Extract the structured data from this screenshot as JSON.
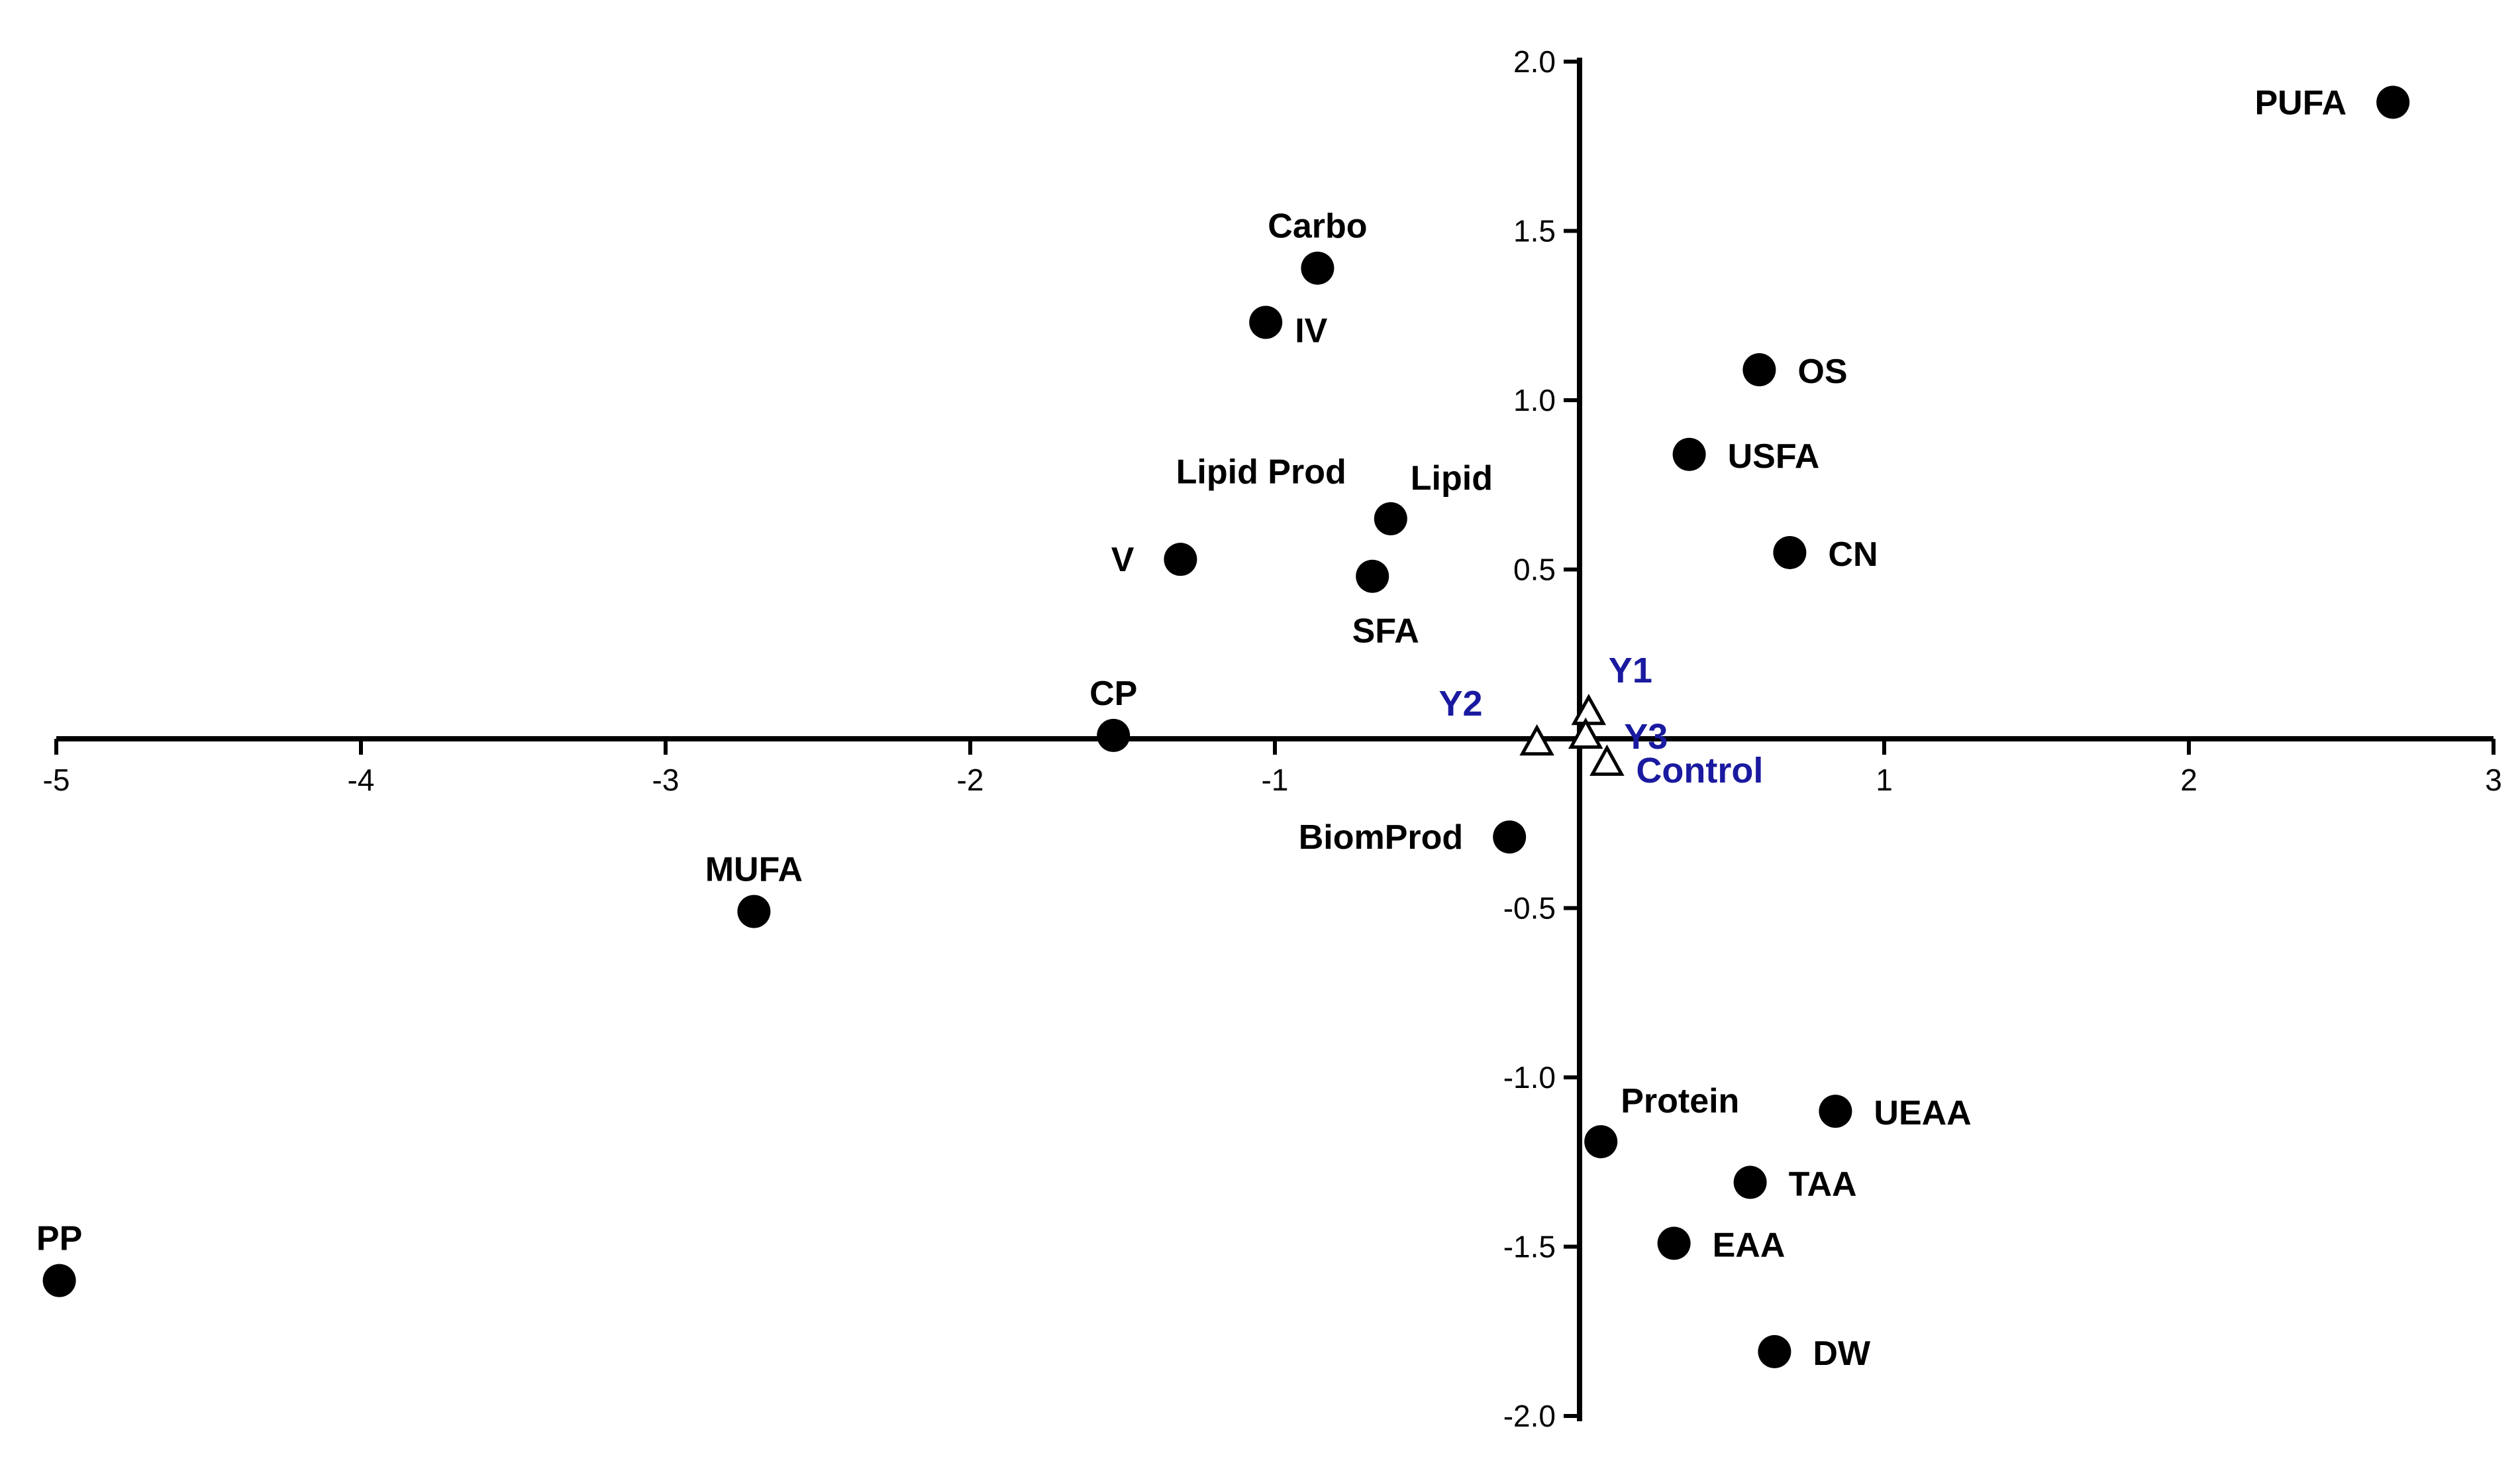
{
  "chart_data": {
    "type": "scatter",
    "xlim": [
      -5,
      3
    ],
    "ylim": [
      -2.0,
      2.0
    ],
    "x_ticks": [
      -5,
      -4,
      -3,
      -2,
      -1,
      1,
      2,
      3
    ],
    "x_tick_labels": [
      "-5",
      "-4",
      "-3",
      "-2",
      "-1",
      "1",
      "2",
      "3"
    ],
    "y_ticks": [
      2.0,
      1.5,
      1.0,
      0.5,
      -0.5,
      -1.0,
      -1.5,
      -2.0
    ],
    "y_tick_labels": [
      "2.0",
      "1.5",
      "1.0",
      "0.5",
      "-0.5",
      "-1.0",
      "-1.5",
      "-2.0"
    ],
    "grid": false,
    "variables": {
      "marker": "filled-circle",
      "color": "#000000",
      "points": [
        {
          "label": "PUFA",
          "x": 2.67,
          "y": 1.88,
          "anchor": "left"
        },
        {
          "label": "Carbo",
          "x": -0.86,
          "y": 1.39,
          "anchor": "above"
        },
        {
          "label": "IV",
          "x": -1.03,
          "y": 1.23,
          "anchor": "right-below"
        },
        {
          "label": "OS",
          "x": 0.59,
          "y": 1.09,
          "anchor": "right"
        },
        {
          "label": "USFA",
          "x": 0.36,
          "y": 0.84,
          "anchor": "right"
        },
        {
          "label": "Lipid",
          "x": -0.62,
          "y": 0.65,
          "anchor": "right-above"
        },
        {
          "label": "Lipid Prod",
          "x": -0.68,
          "y": 0.48,
          "anchor": "above-far"
        },
        {
          "label": "SFA",
          "x": -0.68,
          "y": 0.48,
          "anchor": "below"
        },
        {
          "label": "CN",
          "x": 0.69,
          "y": 0.55,
          "anchor": "right"
        },
        {
          "label": "V",
          "x": -1.31,
          "y": 0.53,
          "anchor": "left"
        },
        {
          "label": "CP",
          "x": -1.53,
          "y": 0.01,
          "anchor": "above"
        },
        {
          "label": "BiomProd",
          "x": -0.23,
          "y": -0.29,
          "anchor": "left"
        },
        {
          "label": "MUFA",
          "x": -2.71,
          "y": -0.51,
          "anchor": "above"
        },
        {
          "label": "Protein",
          "x": 0.07,
          "y": -1.19,
          "anchor": "right-above"
        },
        {
          "label": "UEAA",
          "x": 0.84,
          "y": -1.1,
          "anchor": "right"
        },
        {
          "label": "TAA",
          "x": 0.56,
          "y": -1.31,
          "anchor": "right"
        },
        {
          "label": "EAA",
          "x": 0.31,
          "y": -1.49,
          "anchor": "right"
        },
        {
          "label": "DW",
          "x": 0.64,
          "y": -1.81,
          "anchor": "right"
        },
        {
          "label": "PP",
          "x": -4.99,
          "y": -1.6,
          "anchor": "above"
        }
      ]
    },
    "observations": {
      "marker": "open-triangle",
      "color": "#1a1aa0",
      "points": [
        {
          "label": "Y1",
          "x": 0.03,
          "y": 0.08,
          "anchor": "right-above"
        },
        {
          "label": "Y2",
          "x": -0.14,
          "y": -0.01,
          "anchor": "left-above"
        },
        {
          "label": "Y3",
          "x": 0.02,
          "y": 0.01,
          "anchor": "right"
        },
        {
          "label": "Control",
          "x": 0.09,
          "y": -0.07,
          "anchor": "right-below"
        }
      ]
    }
  }
}
